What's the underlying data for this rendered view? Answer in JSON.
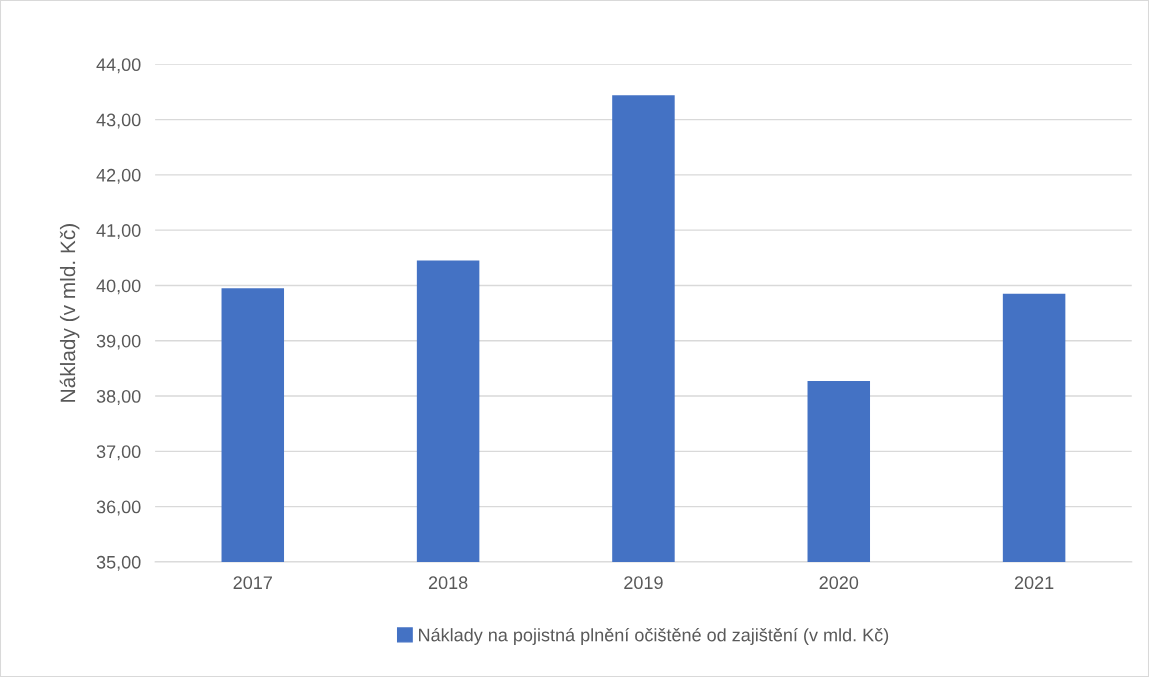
{
  "chart_data": {
    "type": "bar",
    "ylabel": "Náklady (v mld. Kč)",
    "categories": [
      "2017",
      "2018",
      "2019",
      "2020",
      "2021"
    ],
    "series": [
      {
        "name": "Náklady na pojistná plnění očištěné od zajištění (v mld. Kč)",
        "color": "#4472c4",
        "values": [
          39.95,
          40.45,
          43.44,
          38.27,
          39.85
        ]
      }
    ],
    "ylim": [
      35,
      44
    ],
    "yticks": [
      {
        "value": 35,
        "label": "35,00"
      },
      {
        "value": 36,
        "label": "36,00"
      },
      {
        "value": 37,
        "label": "37,00"
      },
      {
        "value": 38,
        "label": "38,00"
      },
      {
        "value": 39,
        "label": "39,00"
      },
      {
        "value": 40,
        "label": "40,00"
      },
      {
        "value": 41,
        "label": "41,00"
      },
      {
        "value": 42,
        "label": "42,00"
      },
      {
        "value": 43,
        "label": "43,00"
      },
      {
        "value": 44,
        "label": "44,00"
      }
    ],
    "grid": "y",
    "legend": "bottom"
  }
}
